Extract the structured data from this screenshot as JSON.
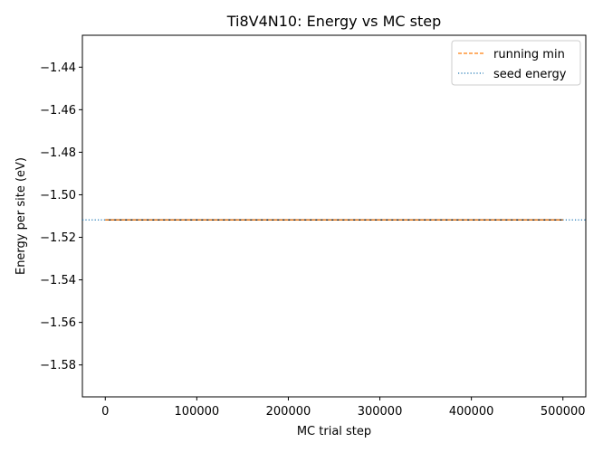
{
  "chart_data": {
    "type": "line",
    "title": "Ti8V4N10: Energy vs MC step",
    "xlabel": "MC trial step",
    "ylabel": "Energy per site (eV)",
    "xlim": [
      -25000,
      525000
    ],
    "ylim": [
      -1.595,
      -1.425
    ],
    "xticks": [
      0,
      100000,
      200000,
      300000,
      400000,
      500000
    ],
    "yticks": [
      -1.44,
      -1.46,
      -1.48,
      -1.5,
      -1.52,
      -1.54,
      -1.56,
      -1.58
    ],
    "xtick_labels": [
      "0",
      "100000",
      "200000",
      "300000",
      "400000",
      "500000"
    ],
    "ytick_labels": [
      "−1.44",
      "−1.46",
      "−1.48",
      "−1.50",
      "−1.52",
      "−1.54",
      "−1.56",
      "−1.58"
    ],
    "grid": false,
    "legend_position": "top-right",
    "series": [
      {
        "name": "running min",
        "style": "dashed",
        "color": "#ff7f0e",
        "x": [
          0,
          500000
        ],
        "y": [
          -1.5118,
          -1.5118
        ]
      },
      {
        "name": "seed energy",
        "style": "dotted",
        "color": "#1f77b4",
        "kind": "hline",
        "y": -1.5118
      }
    ],
    "trace": {
      "color": "#000000",
      "x": [
        0,
        500000
      ],
      "y": [
        -1.5118,
        -1.5118
      ]
    }
  }
}
